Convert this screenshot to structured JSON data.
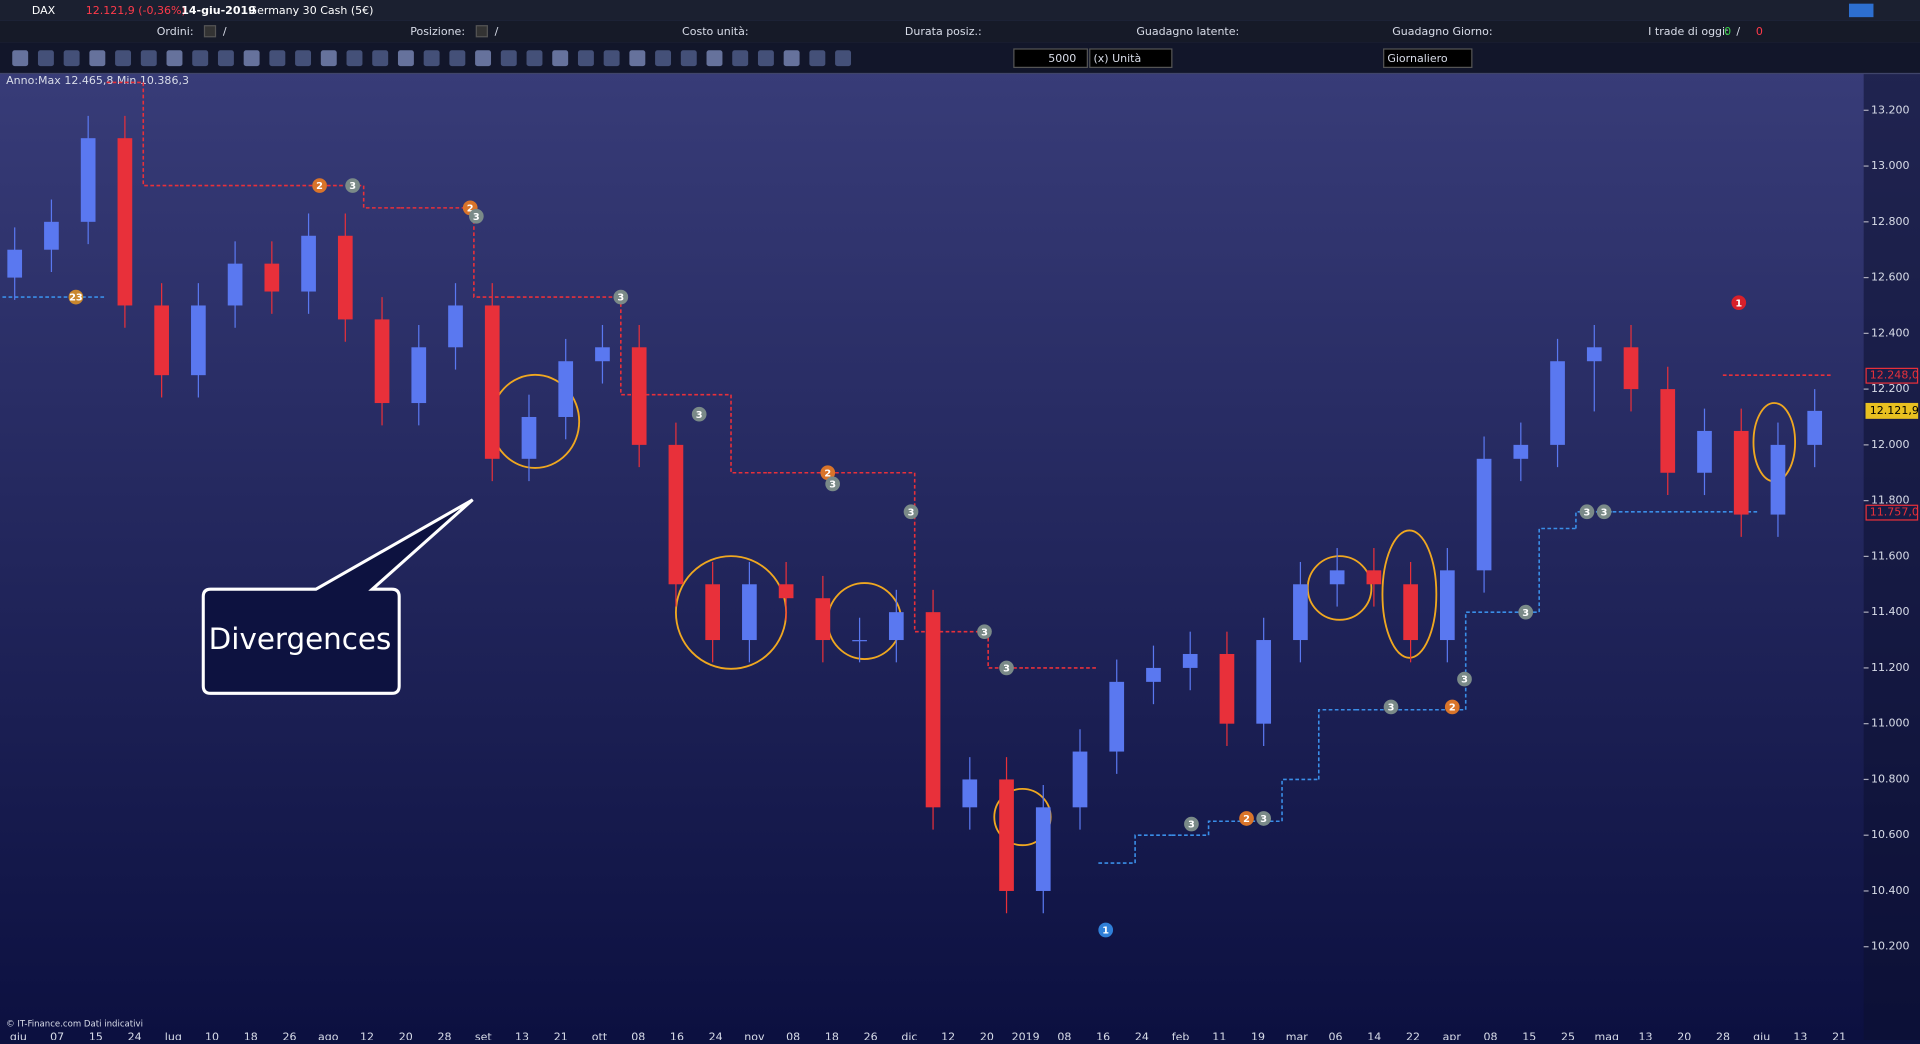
{
  "header": {
    "symbol": "DAX",
    "price": "12.121,9 (-0,36%)",
    "date": "14-giu-2019",
    "instrument": "Germany 30 Cash (5€)"
  },
  "info_bar": {
    "orders": "Ordini:",
    "orders_sep": "/",
    "position": "Posizione:",
    "position_sep": "/",
    "unit_cost": "Costo unità:",
    "duration": "Durata posiz.:",
    "latent_gain": "Guadagno latente:",
    "day_gain": "Guadagno Giorno:",
    "trades_today": "I trade di oggi:",
    "trades_win": "0",
    "trades_sep": "/",
    "trades_loss": "0"
  },
  "toolbar": {
    "quantity": "5000",
    "unit": "(x) Unità",
    "period": "Giornaliero"
  },
  "chart_data": {
    "type": "candlestick",
    "title": "Anno:Max 12.465,8 Min 10.386,3",
    "source": "© IT-Finance.com Dati indicativi",
    "annotation": "Divergences",
    "up_color": "#5a78f0",
    "down_color": "#e8303a",
    "open": [
      12600,
      12700,
      12800,
      13100,
      12500,
      12250,
      12500,
      12650,
      12550,
      12750,
      12450,
      12150,
      12350,
      12500,
      11950,
      12100,
      12300,
      12350,
      12000,
      11500,
      11300,
      11500,
      11450,
      11300,
      11300,
      11400,
      10700,
      10800,
      10400,
      10700,
      10900,
      11150,
      11200,
      11250,
      11000,
      11300,
      11500,
      11550,
      11500,
      11300,
      11550,
      11950,
      12000,
      12300,
      12350,
      12200,
      11900,
      12050,
      11750,
      12000
    ],
    "high": [
      12780,
      12880,
      13180,
      13180,
      12580,
      12580,
      12730,
      12730,
      12830,
      12830,
      12530,
      12430,
      12580,
      12580,
      12180,
      12380,
      12430,
      12430,
      12080,
      11580,
      11580,
      11580,
      11530,
      11380,
      11480,
      11480,
      10880,
      10880,
      10780,
      10980,
      11230,
      11280,
      11330,
      11330,
      11380,
      11580,
      11630,
      11630,
      11580,
      11630,
      12030,
      12080,
      12380,
      12430,
      12430,
      12280,
      12130,
      12130,
      12080,
      12200
    ],
    "low": [
      12520,
      12620,
      12720,
      12420,
      12170,
      12170,
      12420,
      12470,
      12470,
      12370,
      12070,
      12070,
      12270,
      11870,
      11870,
      12020,
      12220,
      11920,
      11420,
      11220,
      11220,
      11370,
      11220,
      11220,
      11220,
      10620,
      10620,
      10320,
      10320,
      10620,
      10820,
      11070,
      11120,
      10920,
      10920,
      11220,
      11420,
      11420,
      11220,
      11220,
      11470,
      11870,
      11920,
      12120,
      12120,
      11820,
      11820,
      11670,
      11670,
      11920
    ],
    "close": [
      12700,
      12800,
      13100,
      12500,
      12250,
      12500,
      12650,
      12550,
      12750,
      12450,
      12150,
      12350,
      12500,
      11950,
      12100,
      12300,
      12350,
      12000,
      11500,
      11300,
      11500,
      11450,
      11300,
      11300,
      11400,
      10700,
      10800,
      10400,
      10700,
      10900,
      11150,
      11200,
      11250,
      11000,
      11300,
      11500,
      11550,
      11500,
      11300,
      11550,
      11950,
      12000,
      12300,
      12350,
      12200,
      11900,
      12050,
      11750,
      12000,
      12121.9
    ],
    "stop_series": [
      {
        "color": "#e8303a",
        "values": [
          null,
          null,
          null,
          13300,
          12930,
          12930,
          12930,
          12930,
          12930,
          12930,
          12850,
          12850,
          12850,
          12530,
          12530,
          12530,
          12530,
          12180,
          12180,
          12180,
          11900,
          11900,
          11900,
          11900,
          11900,
          11330,
          11330,
          11200,
          11200,
          11200,
          null,
          null,
          null,
          null,
          null,
          null,
          null,
          null,
          null,
          null,
          null,
          null,
          null,
          null,
          null,
          null,
          null,
          12250,
          12250,
          12250
        ]
      },
      {
        "color": "#3a8ee8",
        "values": [
          12530,
          12530,
          12530,
          null,
          null,
          null,
          null,
          null,
          null,
          null,
          null,
          null,
          null,
          null,
          null,
          null,
          null,
          null,
          null,
          null,
          null,
          null,
          null,
          null,
          null,
          null,
          null,
          null,
          null,
          null,
          10500,
          10600,
          10600,
          10650,
          10650,
          10800,
          11050,
          11050,
          11050,
          11050,
          11400,
          11400,
          11700,
          11760,
          11760,
          11760,
          11760,
          11760,
          null,
          null
        ]
      }
    ],
    "signals": [
      {
        "label": "23",
        "value": 12530,
        "color": "#c9872e"
      },
      {
        "label": "2",
        "value": 12930,
        "color": "#d9742a"
      },
      {
        "label": "3",
        "value": 12930,
        "color": "#7a8a88"
      },
      {
        "label": "2",
        "value": 12850,
        "color": "#d9742a"
      },
      {
        "label": "3",
        "value": 12820,
        "color": "#7a8a88"
      },
      {
        "label": "3",
        "value": 12530,
        "color": "#7a8a88"
      },
      {
        "label": "3",
        "value": 12110,
        "color": "#7a8a88"
      },
      {
        "label": "2",
        "value": 11900,
        "color": "#d9742a"
      },
      {
        "label": "3",
        "value": 11860,
        "color": "#7a8a88"
      },
      {
        "label": "3",
        "value": 11760,
        "color": "#7a8a88"
      },
      {
        "label": "3",
        "value": 11330,
        "color": "#7a8a88"
      },
      {
        "label": "3",
        "value": 11200,
        "color": "#7a8a88"
      },
      {
        "label": "1",
        "value": 10260,
        "color": "#2f7fd8"
      },
      {
        "label": "3",
        "value": 10640,
        "color": "#7a8a88"
      },
      {
        "label": "2",
        "value": 10660,
        "color": "#d9742a"
      },
      {
        "label": "3",
        "value": 10660,
        "color": "#7a8a88"
      },
      {
        "label": "3",
        "value": 11060,
        "color": "#7a8a88"
      },
      {
        "label": "2",
        "value": 11060,
        "color": "#d9742a"
      },
      {
        "label": "3",
        "value": 11160,
        "color": "#7a8a88"
      },
      {
        "label": "3",
        "value": 11400,
        "color": "#7a8a88"
      },
      {
        "label": "3",
        "value": 11760,
        "color": "#7a8a88"
      },
      {
        "label": "3",
        "value": 11760,
        "color": "#7a8a88"
      },
      {
        "label": "1",
        "value": 12510,
        "color": "#d8202a"
      }
    ],
    "price_labels": [
      {
        "value": 12248,
        "label": "12.248,0",
        "color": "#e8303a"
      },
      {
        "value": 12121.9,
        "label": "12.121,9",
        "color": "#e8c020"
      },
      {
        "value": 11757,
        "label": "11.757,0",
        "color": "#e8303a"
      }
    ],
    "ylim": [
      9905,
      13332
    ],
    "yticks": [
      {
        "value": 10200,
        "label": "10.200"
      },
      {
        "value": 10400,
        "label": "10.400"
      },
      {
        "value": 10600,
        "label": "10.600"
      },
      {
        "value": 10800,
        "label": "10.800"
      },
      {
        "value": 11000,
        "label": "11.000"
      },
      {
        "value": 11200,
        "label": "11.200"
      },
      {
        "value": 11400,
        "label": "11.400"
      },
      {
        "value": 11600,
        "label": "11.600"
      },
      {
        "value": 11800,
        "label": "11.800"
      },
      {
        "value": 12000,
        "label": "12.000"
      },
      {
        "value": 12200,
        "label": "12.200"
      },
      {
        "value": 12400,
        "label": "12.400"
      },
      {
        "value": 12600,
        "label": "12.600"
      },
      {
        "value": 12800,
        "label": "12.800"
      },
      {
        "value": 13000,
        "label": "13.000"
      },
      {
        "value": 13200,
        "label": "13.200"
      }
    ],
    "x_labels": [
      "giu",
      "07",
      "15",
      "24",
      "lug",
      "10",
      "18",
      "26",
      "ago",
      "12",
      "20",
      "28",
      "set",
      "13",
      "21",
      "ott",
      "08",
      "16",
      "24",
      "nov",
      "08",
      "18",
      "26",
      "dic",
      "12",
      "20",
      "2019",
      "08",
      "16",
      "24",
      "feb",
      "11",
      "19",
      "mar",
      "06",
      "14",
      "22",
      "apr",
      "08",
      "15",
      "25",
      "mag",
      "13",
      "20",
      "28",
      "giu",
      "13",
      "21"
    ]
  }
}
